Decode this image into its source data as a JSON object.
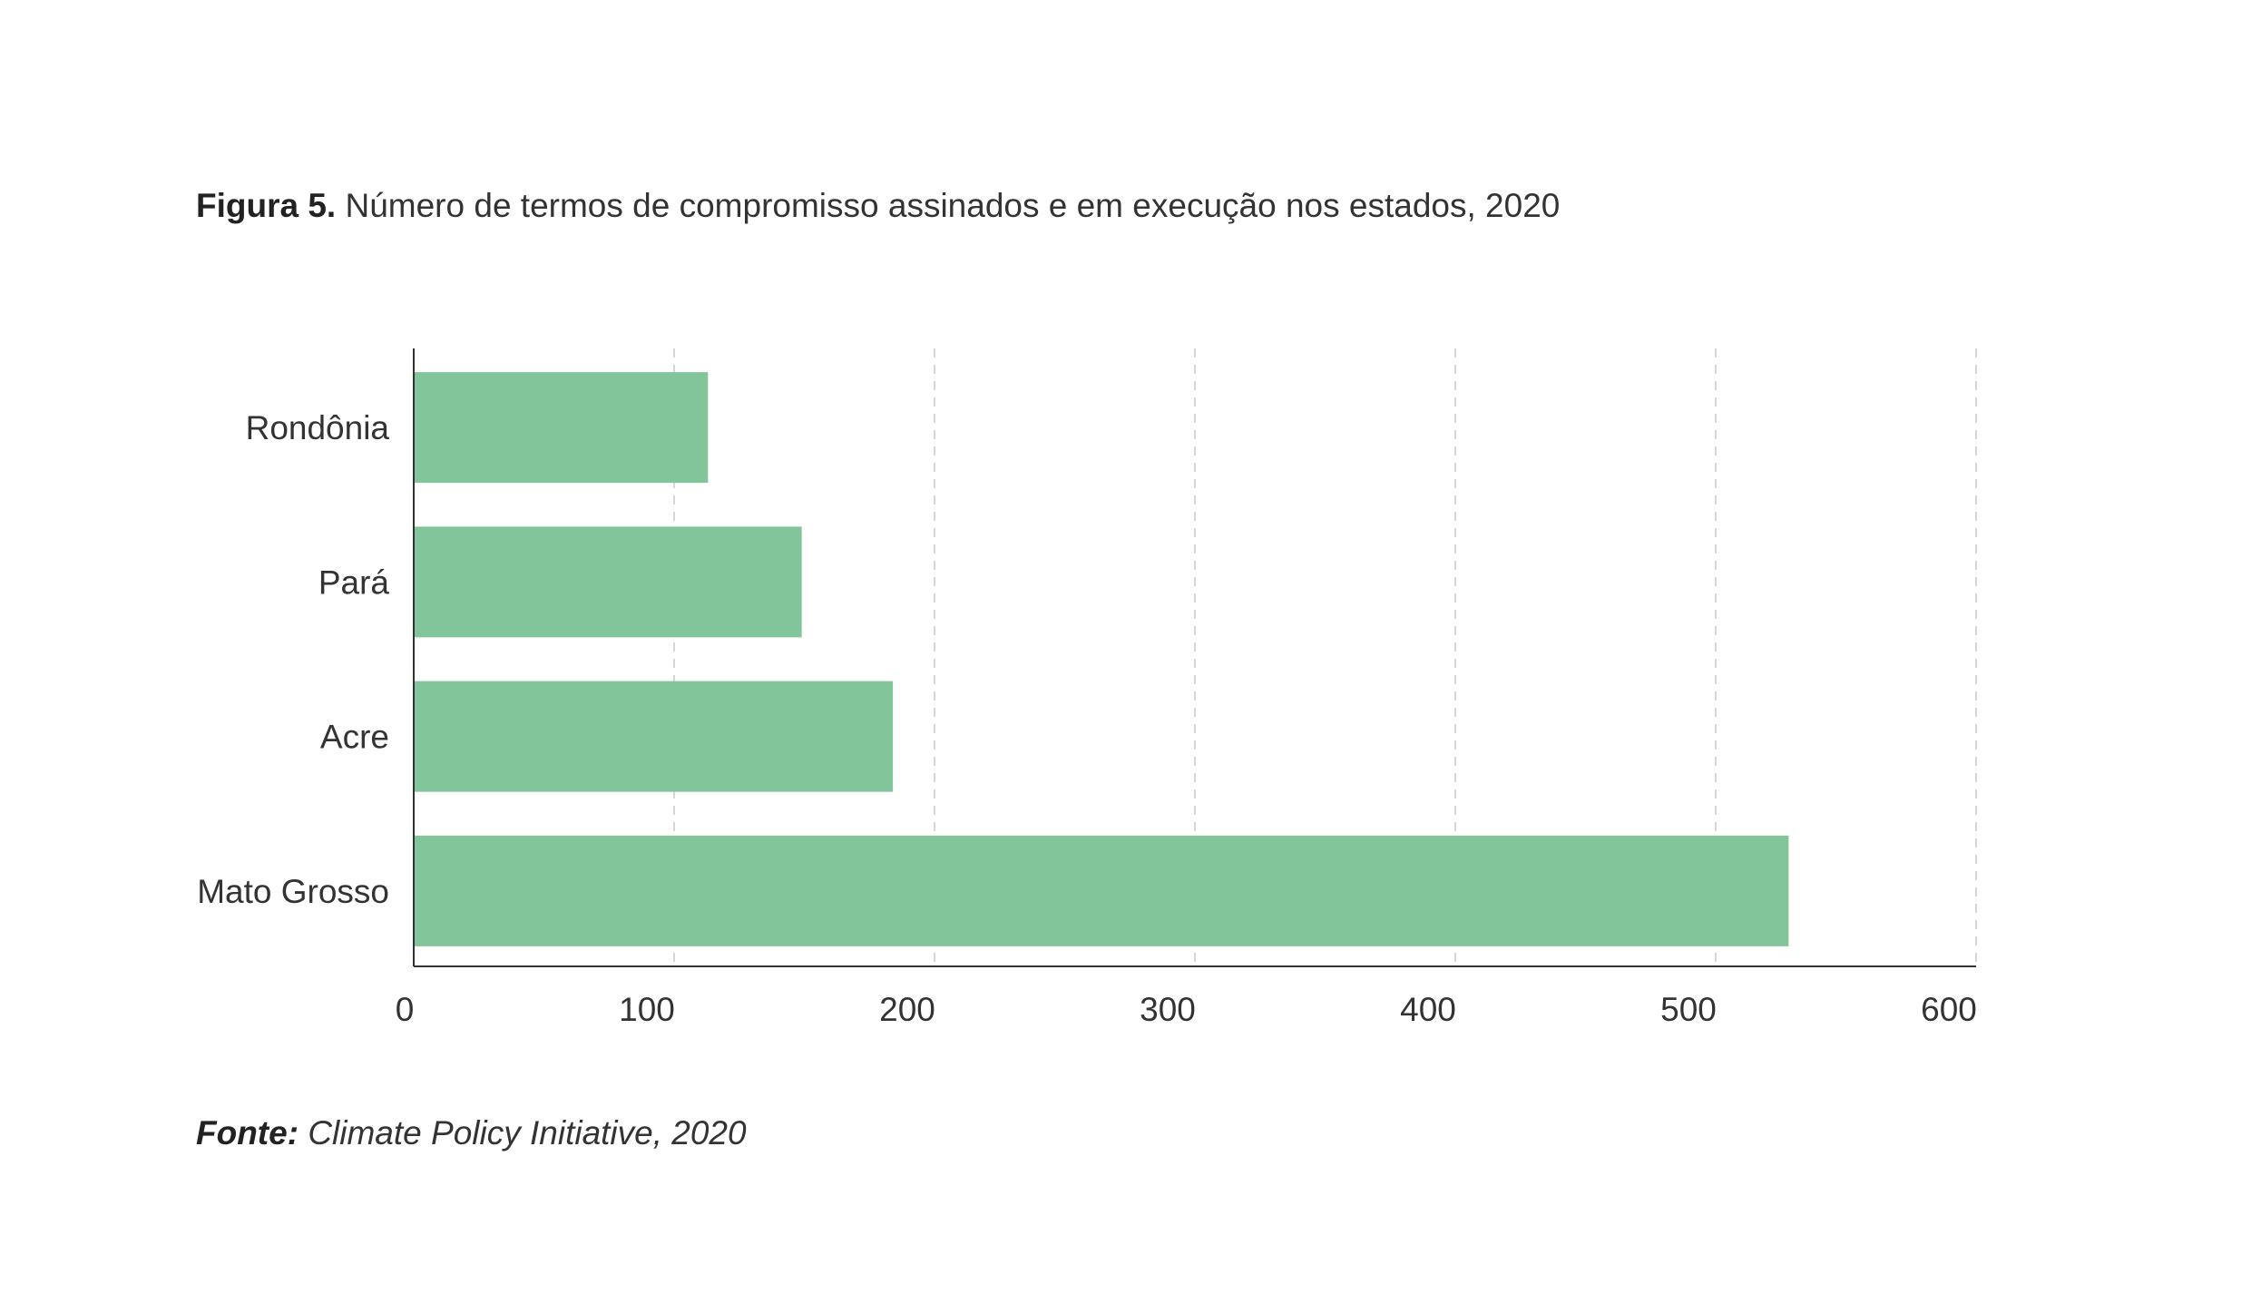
{
  "figure": {
    "title_prefix": "Figura 5.",
    "title_text": "Número de termos de compromisso assinados e em execução nos estados, 2020",
    "source_prefix": "Fonte:",
    "source_text": "Climate Policy Initiative, 2020"
  },
  "colors": {
    "bar": "#82c59a",
    "axis": "#333333",
    "grid": "#d6d6d6"
  },
  "chart_data": {
    "type": "bar",
    "orientation": "horizontal",
    "categories": [
      "Rondônia",
      "Pará",
      "Acre",
      "Mato Grosso"
    ],
    "values": [
      113,
      149,
      184,
      528
    ],
    "xlim": [
      0,
      600
    ],
    "xticks": [
      0,
      100,
      200,
      300,
      400,
      500,
      600
    ],
    "grid": "vertical-dashed",
    "legend": "none"
  }
}
